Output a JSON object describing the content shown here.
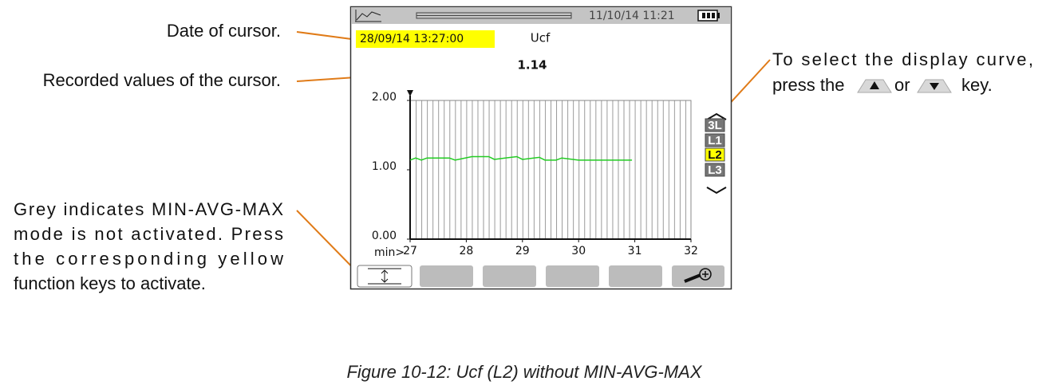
{
  "annotations": {
    "cursor_date": "Date of cursor.",
    "cursor_values": "Recorded values of the cursor.",
    "grey": [
      "Grey indicates MIN-AVG-MAX",
      "mode is not activated. Press",
      "the corresponding yellow",
      "function keys to activate."
    ],
    "select": [
      "To select the display curve,",
      "press the",
      "or",
      "key."
    ]
  },
  "screen": {
    "clock": "11/10/14 11:21",
    "cursor_date": "28/09/14 13:27:00",
    "measure": "Ucf",
    "cursor_value": "1.14",
    "channels": [
      "3L",
      "L1",
      "L2",
      "L3"
    ],
    "selected_channel": "L2"
  },
  "chart_data": {
    "type": "line",
    "x_label": "min>",
    "color": "#22cc22",
    "x": [
      27.0,
      27.1,
      27.2,
      27.3,
      27.4,
      27.7,
      27.8,
      28.1,
      28.4,
      28.5,
      28.9,
      29.0,
      29.3,
      29.4,
      29.6,
      29.7,
      30.0,
      30.95
    ],
    "values": [
      1.14,
      1.17,
      1.14,
      1.17,
      1.17,
      1.17,
      1.14,
      1.19,
      1.19,
      1.15,
      1.19,
      1.15,
      1.18,
      1.14,
      1.14,
      1.17,
      1.14,
      1.14
    ],
    "xlim": [
      27,
      32
    ],
    "ylim": [
      0,
      2
    ],
    "xticks": [
      27,
      28,
      29,
      30,
      31,
      32
    ],
    "yticks": [
      {
        "value": 0,
        "label": "0.00"
      },
      {
        "value": 1,
        "label": "1.00"
      },
      {
        "value": 2,
        "label": "2.00"
      }
    ]
  },
  "caption": "Figure 10-12: Ucf (L2) without MIN-AVG-MAX"
}
